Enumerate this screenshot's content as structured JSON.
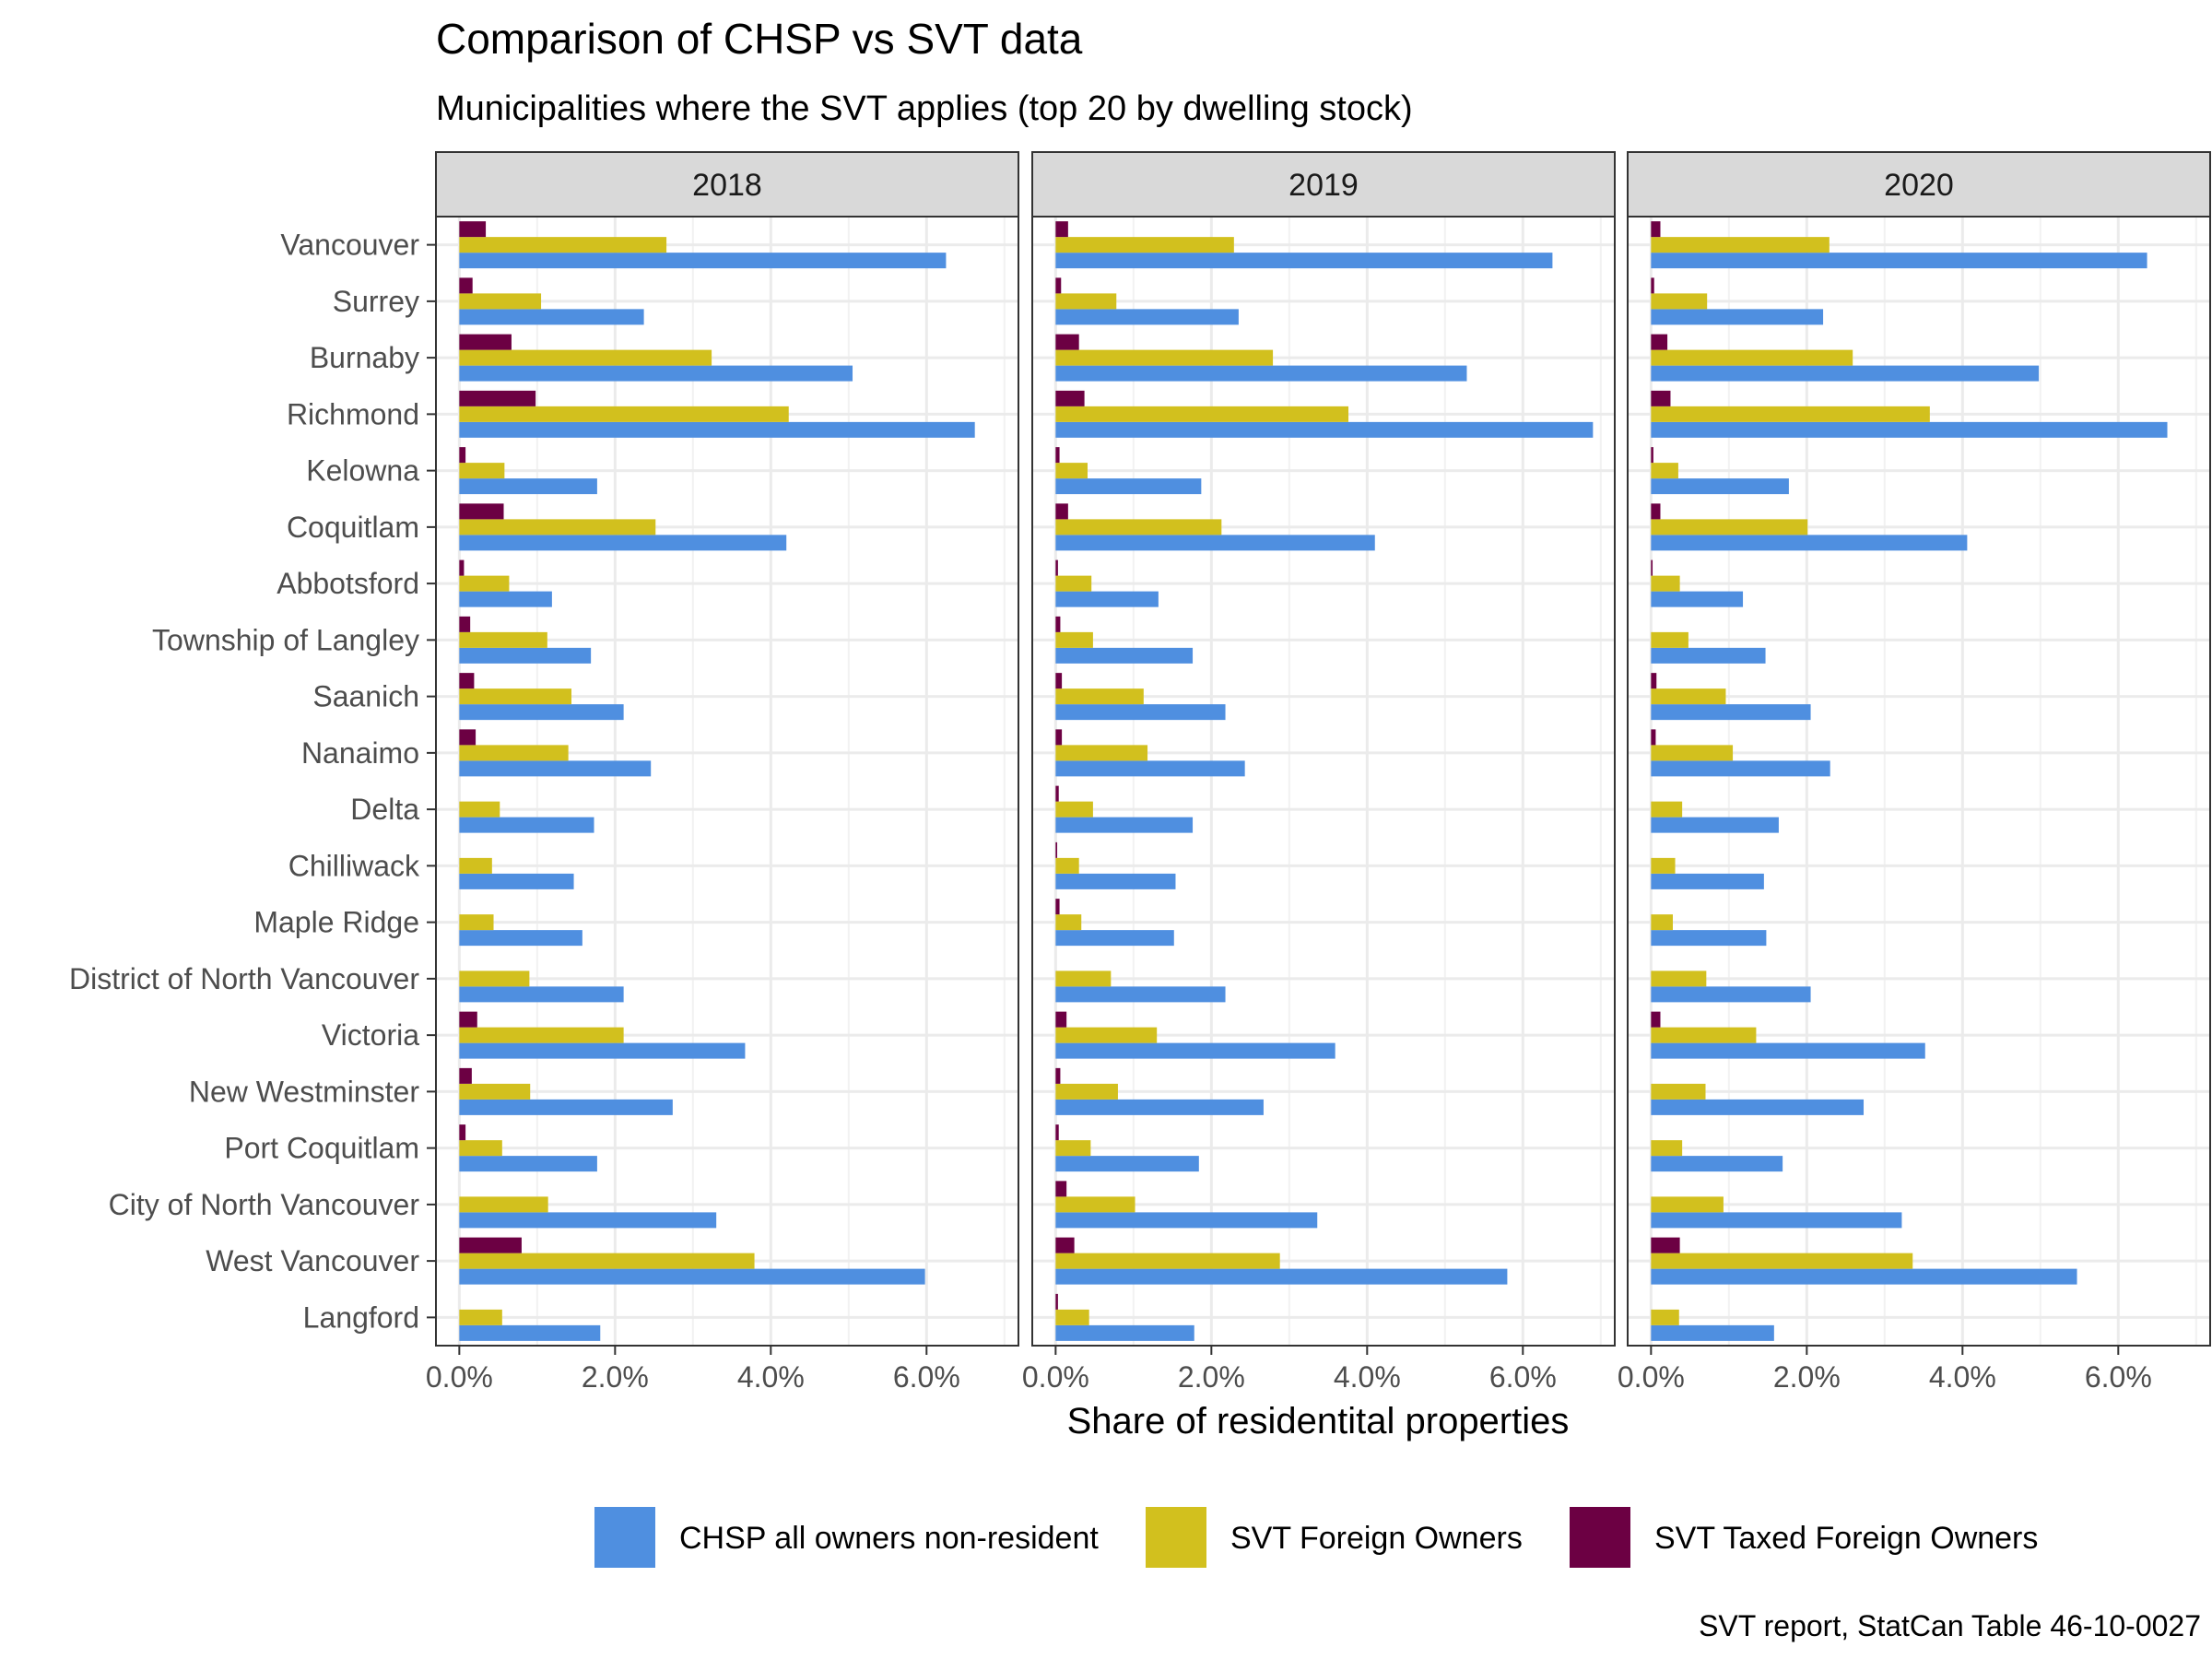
{
  "chart_data": {
    "type": "bar",
    "orientation": "horizontal",
    "title": "Comparison of CHSP vs SVT data",
    "subtitle": "Municipalities where the SVT applies (top 20 by dwelling stock)",
    "xlabel": "Share of residentital properties",
    "ylabel": "",
    "caption": "SVT report, StatCan Table 46-10-0027",
    "xlim": [
      -0.003,
      0.0718
    ],
    "x_ticks": [
      0,
      0.02,
      0.04,
      0.06
    ],
    "x_tick_labels": [
      "0.0%",
      "2.0%",
      "4.0%",
      "6.0%"
    ],
    "grid": true,
    "legend_position": "bottom",
    "colors": {
      "CHSP all owners non-resident": "#4f8fe0",
      "SVT Foreign Owners": "#d2c01e",
      "SVT Taxed Foreign Owners": "#6c0043"
    },
    "categories": [
      "Vancouver",
      "Surrey",
      "Burnaby",
      "Richmond",
      "Kelowna",
      "Coquitlam",
      "Abbotsford",
      "Township of Langley",
      "Saanich",
      "Nanaimo",
      "Delta",
      "Chilliwack",
      "Maple Ridge",
      "District of North Vancouver",
      "Victoria",
      "New Westminster",
      "Port Coquitlam",
      "City of North Vancouver",
      "West Vancouver",
      "Langford"
    ],
    "series_order": [
      "SVT Taxed Foreign Owners",
      "SVT Foreign Owners",
      "CHSP all owners non-resident"
    ],
    "facets": [
      {
        "label": "2018",
        "series": [
          {
            "name": "CHSP all owners non-resident",
            "values": [
              0.0625,
              0.0237,
              0.0505,
              0.0662,
              0.0177,
              0.042,
              0.0119,
              0.0169,
              0.0211,
              0.0246,
              0.0173,
              0.0147,
              0.0158,
              0.0211,
              0.0367,
              0.0274,
              0.0177,
              0.033,
              0.0598,
              0.0181
            ]
          },
          {
            "name": "SVT Foreign Owners",
            "values": [
              0.0266,
              0.0105,
              0.0324,
              0.0423,
              0.0058,
              0.0252,
              0.0064,
              0.0113,
              0.0144,
              0.014,
              0.0052,
              0.0042,
              0.0044,
              0.009,
              0.0211,
              0.0091,
              0.0055,
              0.0114,
              0.0379,
              0.0055
            ]
          },
          {
            "name": "SVT Taxed Foreign Owners",
            "values": [
              0.0034,
              0.0017,
              0.0067,
              0.0098,
              0.0008,
              0.0057,
              0.0006,
              0.0014,
              0.0019,
              0.0021,
              0.0,
              0.0,
              0.0,
              0.0,
              0.0023,
              0.0016,
              0.0008,
              0.0,
              0.008,
              0.0
            ]
          }
        ]
      },
      {
        "label": "2019",
        "series": [
          {
            "name": "CHSP all owners non-resident",
            "values": [
              0.0638,
              0.0235,
              0.0528,
              0.069,
              0.0187,
              0.041,
              0.0132,
              0.0176,
              0.0218,
              0.0243,
              0.0176,
              0.0154,
              0.0152,
              0.0218,
              0.0359,
              0.0267,
              0.0184,
              0.0336,
              0.058,
              0.0178
            ]
          },
          {
            "name": "SVT Foreign Owners",
            "values": [
              0.0229,
              0.0078,
              0.0279,
              0.0376,
              0.0041,
              0.0213,
              0.0046,
              0.0048,
              0.0113,
              0.0118,
              0.0048,
              0.003,
              0.0033,
              0.0071,
              0.013,
              0.008,
              0.0045,
              0.0102,
              0.0288,
              0.0043
            ]
          },
          {
            "name": "SVT Taxed Foreign Owners",
            "values": [
              0.0016,
              0.0007,
              0.003,
              0.0037,
              0.0005,
              0.0016,
              0.0003,
              0.0006,
              0.0008,
              0.0008,
              0.0004,
              0.0002,
              0.0005,
              0.0,
              0.0014,
              0.0006,
              0.0004,
              0.0014,
              0.0024,
              0.0003
            ]
          }
        ]
      },
      {
        "label": "2020",
        "series": [
          {
            "name": "CHSP all owners non-resident",
            "values": [
              0.0637,
              0.0221,
              0.0498,
              0.0663,
              0.0177,
              0.0406,
              0.0118,
              0.0147,
              0.0205,
              0.023,
              0.0164,
              0.0145,
              0.0148,
              0.0205,
              0.0352,
              0.0273,
              0.0169,
              0.0322,
              0.0547,
              0.0158
            ]
          },
          {
            "name": "SVT Foreign Owners",
            "values": [
              0.0229,
              0.0072,
              0.0259,
              0.0358,
              0.0035,
              0.0201,
              0.0037,
              0.0048,
              0.0096,
              0.0105,
              0.004,
              0.0031,
              0.0028,
              0.0071,
              0.0135,
              0.007,
              0.004,
              0.0093,
              0.0336,
              0.0036
            ]
          },
          {
            "name": "SVT Taxed Foreign Owners",
            "values": [
              0.0012,
              0.0004,
              0.0021,
              0.0025,
              0.0003,
              0.0012,
              0.0002,
              0.0,
              0.0007,
              0.0006,
              0.0,
              0.0,
              0.0,
              0.0,
              0.0012,
              0.0,
              0.0,
              0.0,
              0.0037,
              0.0
            ]
          }
        ]
      }
    ],
    "legend": [
      "CHSP all owners non-resident",
      "SVT Foreign Owners",
      "SVT Taxed Foreign Owners"
    ]
  }
}
